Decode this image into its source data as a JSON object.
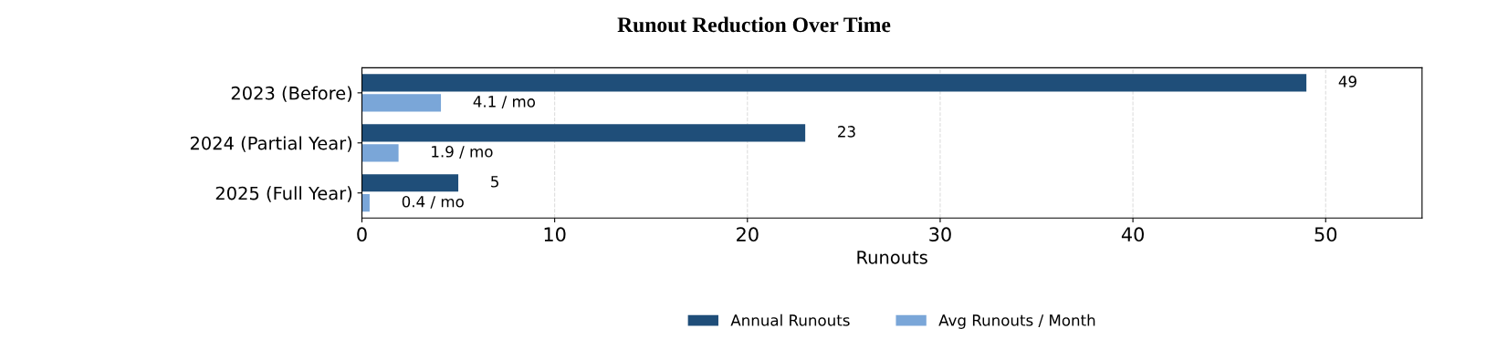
{
  "chart_data": {
    "type": "bar",
    "orientation": "horizontal",
    "title": "Runout Reduction Over Time",
    "categories": [
      "2023 (Before)",
      "2024 (Partial Year)",
      "2025 (Full Year)"
    ],
    "series": [
      {
        "name": "Annual Runouts",
        "color": "#1f4e79",
        "values": [
          49,
          23,
          5
        ],
        "value_labels": [
          "49",
          "23",
          "5"
        ]
      },
      {
        "name": "Avg Runouts / Month",
        "color": "#7aa6d8",
        "values": [
          4.1,
          1.9,
          0.4
        ],
        "value_labels": [
          "4.1 / mo",
          "1.9 / mo",
          "0.4 / mo"
        ]
      }
    ],
    "xlabel": "Runouts",
    "xlim": [
      0,
      55
    ],
    "xticks": [
      0,
      10,
      20,
      30,
      40,
      50
    ],
    "grid": "x",
    "legend": "bottom"
  }
}
